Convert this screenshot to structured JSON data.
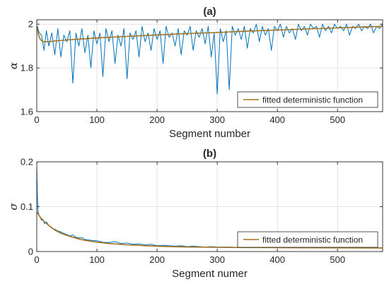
{
  "chart_data": [
    {
      "type": "line",
      "title": "(a)",
      "xlabel": "Segment number",
      "ylabel": "α",
      "xlim": [
        0,
        575
      ],
      "ylim": [
        1.6,
        2.02
      ],
      "xticks": [
        0,
        100,
        200,
        300,
        400,
        500
      ],
      "xtick_labels": [
        "0",
        "100",
        "200",
        "300",
        "400",
        "500"
      ],
      "yticks": [
        1.6,
        1.8,
        2.0
      ],
      "ytick_labels": [
        "1.6",
        "1.8",
        "2"
      ],
      "grid": true,
      "legend": {
        "placement": "bottom-right",
        "entries": [
          "fitted deterministic function"
        ]
      },
      "series": [
        {
          "role": "data",
          "color": "#0072BD",
          "x": [
            1,
            4,
            8,
            12,
            16,
            20,
            25,
            30,
            35,
            40,
            45,
            50,
            55,
            60,
            65,
            70,
            75,
            80,
            85,
            90,
            95,
            100,
            105,
            110,
            115,
            120,
            125,
            130,
            135,
            140,
            145,
            150,
            155,
            160,
            165,
            170,
            175,
            180,
            185,
            190,
            195,
            200,
            205,
            210,
            215,
            220,
            225,
            230,
            235,
            240,
            245,
            250,
            255,
            260,
            265,
            270,
            275,
            280,
            285,
            290,
            295,
            300,
            305,
            310,
            315,
            320,
            325,
            330,
            335,
            340,
            345,
            350,
            355,
            360,
            365,
            370,
            375,
            380,
            385,
            390,
            395,
            400,
            405,
            410,
            415,
            420,
            425,
            430,
            435,
            440,
            445,
            450,
            455,
            460,
            465,
            470,
            475,
            480,
            485,
            490,
            495,
            500,
            505,
            510,
            515,
            520,
            525,
            530,
            535,
            540,
            545,
            550,
            555,
            560,
            565,
            570,
            575
          ],
          "y": [
            1.99,
            1.96,
            1.95,
            1.88,
            1.97,
            1.9,
            1.96,
            1.86,
            1.98,
            1.85,
            1.95,
            1.92,
            1.97,
            1.73,
            1.96,
            1.9,
            1.98,
            1.87,
            1.95,
            1.8,
            1.97,
            1.91,
            1.96,
            1.76,
            1.98,
            1.92,
            1.97,
            1.82,
            1.95,
            1.9,
            1.98,
            1.75,
            1.96,
            1.93,
            1.97,
            1.85,
            1.99,
            1.92,
            1.96,
            1.88,
            1.98,
            1.93,
            1.97,
            1.82,
            1.99,
            1.94,
            1.96,
            1.9,
            1.98,
            1.86,
            1.97,
            1.95,
            1.99,
            1.88,
            1.97,
            1.94,
            1.98,
            1.91,
            1.99,
            1.85,
            1.96,
            1.68,
            1.98,
            1.92,
            1.97,
            1.7,
            1.99,
            1.95,
            1.98,
            1.93,
            1.99,
            1.89,
            1.98,
            1.96,
            2.0,
            1.92,
            1.99,
            1.95,
            1.98,
            1.88,
            1.99,
            1.97,
            2.0,
            1.94,
            1.99,
            1.96,
            1.98,
            1.93,
            2.0,
            1.97,
            1.99,
            1.95,
            2.0,
            1.98,
            1.99,
            1.94,
            2.0,
            1.97,
            1.99,
            1.96,
            2.0,
            1.98,
            1.99,
            1.97,
            2.0,
            1.95,
            1.99,
            1.98,
            2.0,
            1.97,
            1.99,
            1.98,
            2.0,
            1.96,
            1.99,
            1.98,
            2.0
          ]
        },
        {
          "role": "fit",
          "name": "fitted deterministic function",
          "color": "#A2711E",
          "x": [
            0,
            3,
            6,
            10,
            15,
            20,
            30,
            50,
            75,
            100,
            150,
            200,
            250,
            300,
            350,
            400,
            450,
            500,
            550,
            575
          ],
          "y": [
            1.99,
            1.95,
            1.93,
            1.92,
            1.92,
            1.92,
            1.923,
            1.928,
            1.932,
            1.937,
            1.944,
            1.951,
            1.957,
            1.962,
            1.968,
            1.973,
            1.978,
            1.983,
            1.988,
            1.99
          ]
        }
      ]
    },
    {
      "type": "line",
      "title": "(b)",
      "xlabel": "Segment numer",
      "ylabel": "σ",
      "xlim": [
        0,
        575
      ],
      "ylim": [
        0,
        0.2
      ],
      "xticks": [
        0,
        100,
        200,
        300,
        400,
        500
      ],
      "xtick_labels": [
        "0",
        "100",
        "200",
        "300",
        "400",
        "500"
      ],
      "yticks": [
        0,
        0.1,
        0.2
      ],
      "ytick_labels": [
        "0",
        "0.1",
        "0.2"
      ],
      "grid": true,
      "legend": {
        "placement": "bottom-right",
        "entries": [
          "fitted deterministic function"
        ]
      },
      "series": [
        {
          "role": "data",
          "color": "#0072BD",
          "x": [
            0,
            1,
            2,
            4,
            6,
            8,
            10,
            13,
            16,
            20,
            25,
            30,
            35,
            40,
            45,
            50,
            55,
            60,
            65,
            70,
            75,
            80,
            90,
            100,
            110,
            120,
            130,
            140,
            150,
            160,
            170,
            180,
            190,
            200,
            210,
            220,
            230,
            240,
            250,
            260,
            270,
            280,
            290,
            300,
            320,
            340,
            360,
            380,
            400,
            420,
            440,
            460,
            480,
            500,
            520,
            540,
            560,
            575
          ],
          "y": [
            0.19,
            0.12,
            0.09,
            0.08,
            0.075,
            0.07,
            0.072,
            0.062,
            0.066,
            0.058,
            0.052,
            0.05,
            0.046,
            0.044,
            0.04,
            0.038,
            0.035,
            0.037,
            0.032,
            0.03,
            0.031,
            0.027,
            0.025,
            0.024,
            0.021,
            0.02,
            0.022,
            0.018,
            0.019,
            0.016,
            0.017,
            0.015,
            0.016,
            0.013,
            0.014,
            0.013,
            0.012,
            0.013,
            0.011,
            0.012,
            0.011,
            0.01,
            0.011,
            0.01,
            0.01,
            0.009,
            0.01,
            0.009,
            0.009,
            0.01,
            0.008,
            0.009,
            0.008,
            0.009,
            0.008,
            0.008,
            0.009,
            0.008
          ]
        },
        {
          "role": "fit",
          "name": "fitted deterministic function",
          "color": "#A2711E",
          "x": [
            0,
            5,
            10,
            20,
            30,
            40,
            50,
            60,
            70,
            80,
            100,
            120,
            150,
            200,
            250,
            300,
            350,
            400,
            450,
            500,
            575
          ],
          "y": [
            0.088,
            0.078,
            0.07,
            0.058,
            0.048,
            0.041,
            0.036,
            0.032,
            0.028,
            0.025,
            0.021,
            0.018,
            0.015,
            0.012,
            0.01,
            0.0095,
            0.009,
            0.0088,
            0.0085,
            0.0083,
            0.008
          ]
        }
      ]
    }
  ]
}
